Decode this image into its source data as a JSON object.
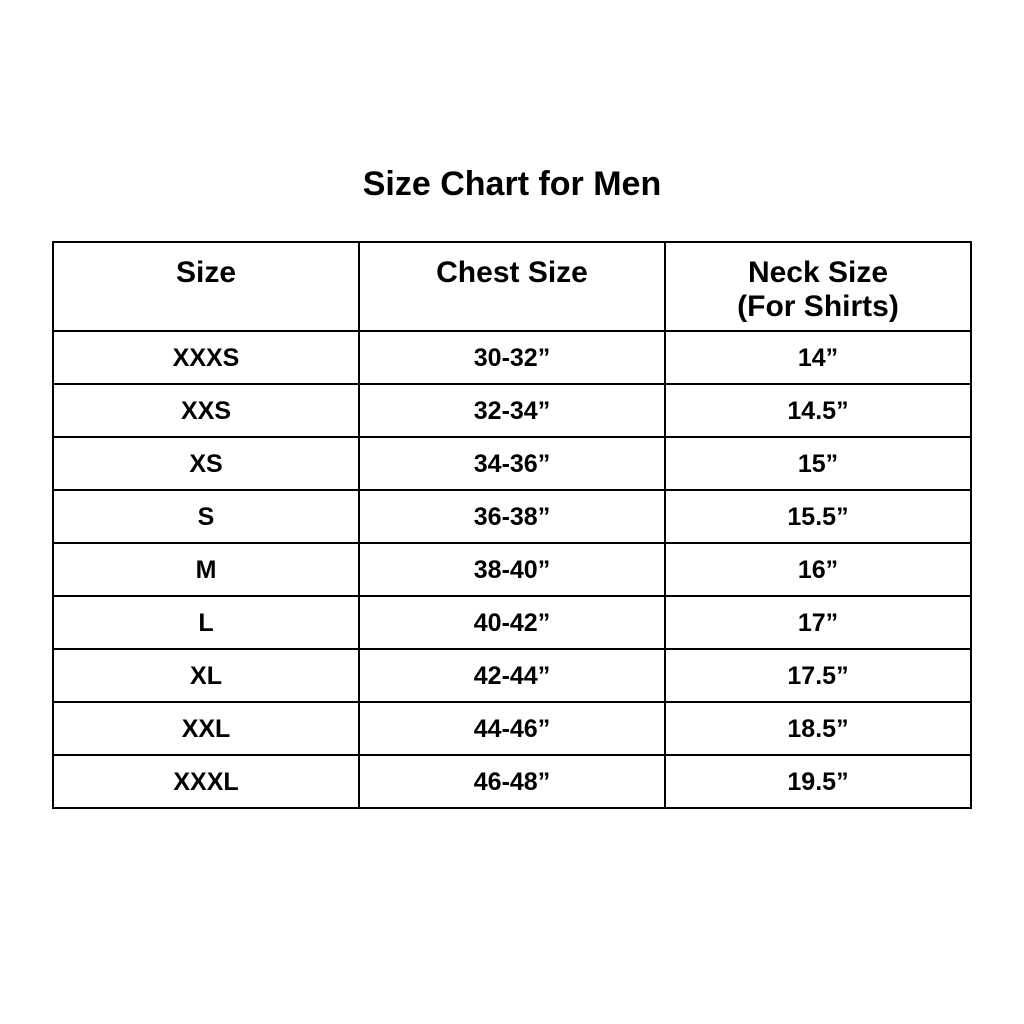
{
  "page": {
    "title": "Size Chart for Men"
  },
  "chart_data": {
    "type": "table",
    "title": "Size Chart for Men",
    "columns": [
      "Size",
      "Chest Size",
      "Neck Size (For Shirts)"
    ],
    "rows": [
      [
        "XXXS",
        "30-32”",
        "14”"
      ],
      [
        "XXS",
        "32-34”",
        "14.5”"
      ],
      [
        "XS",
        "34-36”",
        "15”"
      ],
      [
        "S",
        "36-38”",
        "15.5”"
      ],
      [
        "M",
        "38-40”",
        "16”"
      ],
      [
        "L",
        "40-42”",
        "17”"
      ],
      [
        "XL",
        "42-44”",
        "17.5”"
      ],
      [
        "XXL",
        "44-46”",
        "18.5”"
      ],
      [
        "XXXL",
        "46-48”",
        "19.5”"
      ]
    ],
    "layout": {
      "grid": "full-borders",
      "border_color": "#000000",
      "background_color": "#ffffff",
      "text_color": "#000000"
    }
  },
  "table_display": {
    "headers": [
      {
        "line1": "Size",
        "line2": ""
      },
      {
        "line1": "Chest Size",
        "line2": ""
      },
      {
        "line1": "Neck Size",
        "line2": "(For Shirts)"
      }
    ]
  }
}
